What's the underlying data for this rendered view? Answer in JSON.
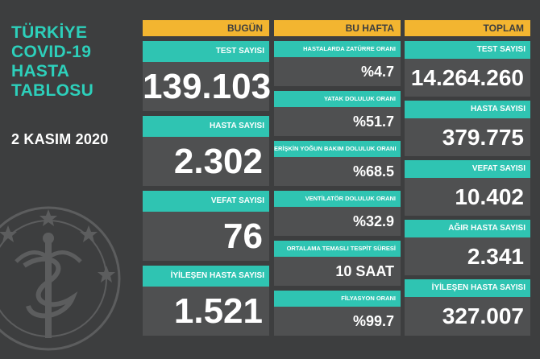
{
  "title": {
    "lines": [
      "TÜRKİYE",
      "COVID-19",
      "HASTA",
      "TABLOSU"
    ]
  },
  "date": "2 KASIM 2020",
  "headers": {
    "today": "BUGÜN",
    "week": "BU HAFTA",
    "total": "TOPLAM"
  },
  "today": [
    {
      "label": "TEST SAYISI",
      "value": "139.103"
    },
    {
      "label": "HASTA SAYISI",
      "value": "2.302"
    },
    {
      "label": "VEFAT SAYISI",
      "value": "76"
    },
    {
      "label": "İYİLEŞEN HASTA SAYISI",
      "value": "1.521"
    }
  ],
  "week": [
    {
      "label": "HASTALARDA ZATÜRRE ORANI",
      "value": "%4.7"
    },
    {
      "label": "YATAK DOLULUK ORANI",
      "value": "%51.7"
    },
    {
      "label": "ERİŞKİN YOĞUN BAKIM DOLULUK ORANI",
      "value": "%68.5"
    },
    {
      "label": "VENTİLATÖR DOLULUK ORANI",
      "value": "%32.9"
    },
    {
      "label": "ORTALAMA TEMASLI TESPİT SÜRESİ",
      "value": "10 SAAT"
    },
    {
      "label": "FİLYASYON ORANI",
      "value": "%99.7"
    }
  ],
  "total": [
    {
      "label": "TEST SAYISI",
      "value": "14.264.260"
    },
    {
      "label": "HASTA SAYISI",
      "value": "379.775"
    },
    {
      "label": "VEFAT SAYISI",
      "value": "10.402"
    },
    {
      "label": "AĞIR HASTA SAYISI",
      "value": "2.341"
    },
    {
      "label": "İYİLEŞEN HASTA SAYISI",
      "value": "327.007"
    }
  ],
  "colors": {
    "accent": "#2fc4b2",
    "header": "#f3b530",
    "background": "#3d3e3f",
    "panel": "#4f5051"
  },
  "icons": [
    "ministry-emblem-icon"
  ]
}
